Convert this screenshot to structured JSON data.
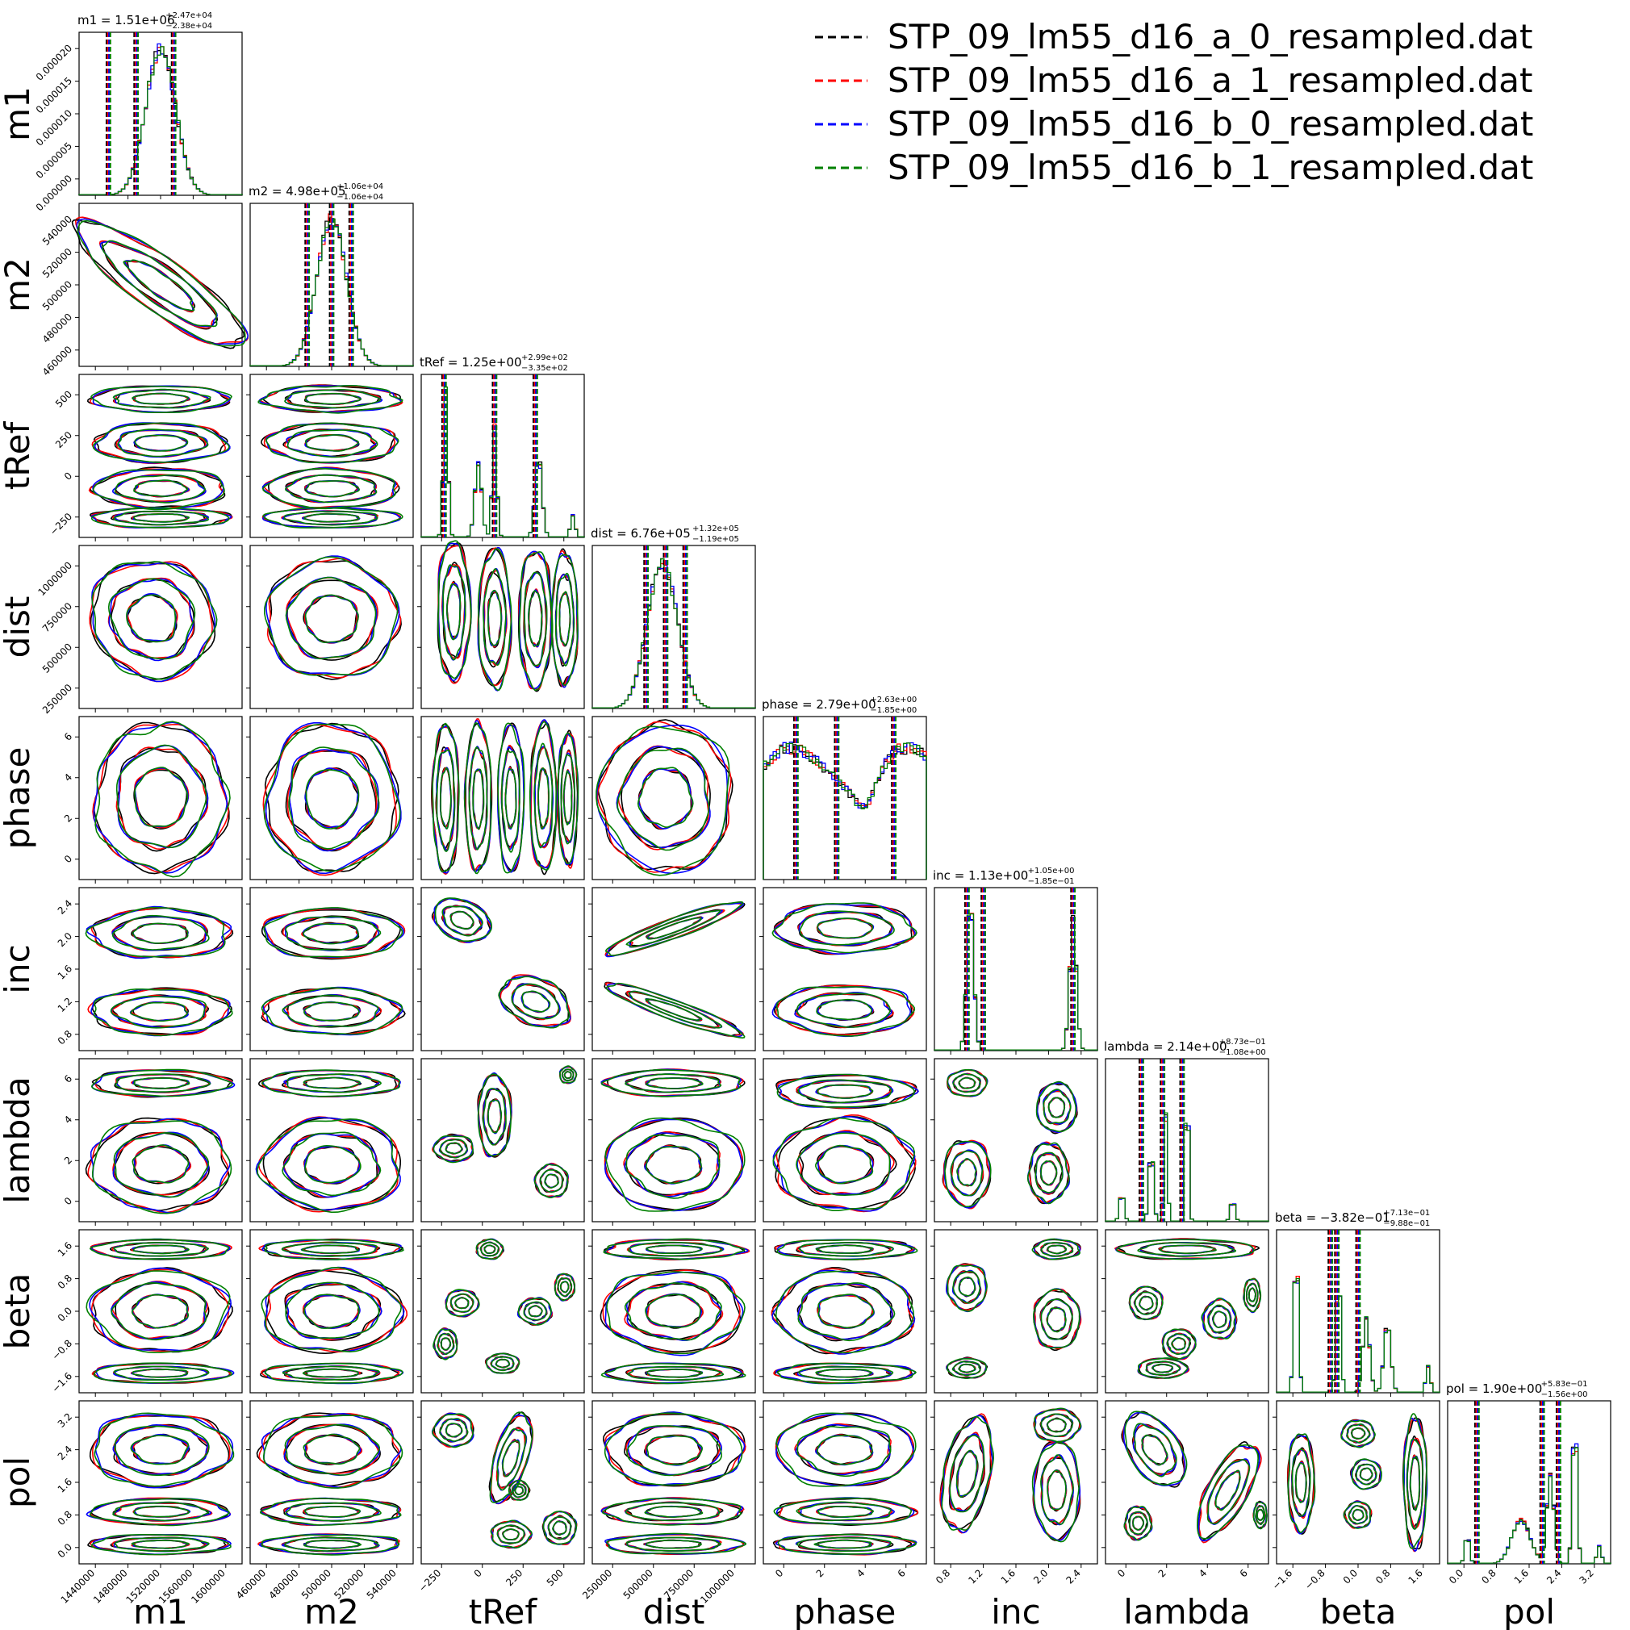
{
  "chart_data": {
    "type": "corner",
    "parameters": [
      {
        "name": "m1",
        "title": "m1 = 1.51e+06",
        "title_up": "+2.47e+04",
        "title_down": "−2.38e+04",
        "x_ticks": [
          "1440000",
          "1480000",
          "1520000",
          "1560000",
          "1600000"
        ],
        "y_ticks": [
          "0.000000",
          "0.000005",
          "0.000010",
          "0.000015",
          "0.000020"
        ]
      },
      {
        "name": "m2",
        "title": "m2 = 4.98e+05",
        "title_up": "+1.06e+04",
        "title_down": "−1.06e+04",
        "x_ticks": [
          "460000",
          "480000",
          "500000",
          "520000",
          "540000"
        ],
        "y_ticks": [
          "460000",
          "480000",
          "500000",
          "520000",
          "540000"
        ]
      },
      {
        "name": "tRef",
        "title": "tRef = 1.25e+00",
        "title_up": "+2.99e+02",
        "title_down": "−3.35e+02",
        "x_ticks": [
          "−250",
          "0",
          "250",
          "500"
        ],
        "y_ticks": [
          "−250",
          "0",
          "250",
          "500"
        ]
      },
      {
        "name": "dist",
        "title": "dist = 6.76e+05",
        "title_up": "+1.32e+05",
        "title_down": "−1.19e+05",
        "x_ticks": [
          "250000",
          "500000",
          "750000",
          "1000000"
        ],
        "y_ticks": [
          "250000",
          "500000",
          "750000",
          "1000000"
        ]
      },
      {
        "name": "phase",
        "title": "phase = 2.79e+00",
        "title_up": "+2.63e+00",
        "title_down": "−1.85e+00",
        "x_ticks": [
          "0",
          "2",
          "4",
          "6"
        ],
        "y_ticks": [
          "0",
          "2",
          "4",
          "6"
        ]
      },
      {
        "name": "inc",
        "title": "inc = 1.13e+00",
        "title_up": "+1.05e+00",
        "title_down": "−1.85e−01",
        "x_ticks": [
          "0.8",
          "1.2",
          "1.6",
          "2.0",
          "2.4"
        ],
        "y_ticks": [
          "0.8",
          "1.2",
          "1.6",
          "2.0",
          "2.4"
        ]
      },
      {
        "name": "lambda",
        "title": "lambda = 2.14e+00",
        "title_up": "+8.73e−01",
        "title_down": "−1.08e+00",
        "x_ticks": [
          "0",
          "2",
          "4",
          "6"
        ],
        "y_ticks": [
          "0",
          "2",
          "4",
          "6"
        ]
      },
      {
        "name": "beta",
        "title": "beta = −3.82e−01",
        "title_up": "+7.13e−01",
        "title_down": "−9.88e−01",
        "x_ticks": [
          "−1.6",
          "−0.8",
          "0.0",
          "0.8",
          "1.6"
        ],
        "y_ticks": [
          "−1.6",
          "−0.8",
          "0.0",
          "0.8",
          "1.6"
        ]
      },
      {
        "name": "pol",
        "title": "pol = 1.90e+00",
        "title_up": "+5.83e−01",
        "title_down": "−1.56e+00",
        "x_ticks": [
          "0.0",
          "0.8",
          "1.6",
          "2.4",
          "3.2"
        ],
        "y_ticks": [
          "0.0",
          "0.8",
          "1.6",
          "2.4",
          "3.2"
        ]
      }
    ],
    "legend": {
      "placement": "top-right",
      "entries": [
        {
          "label": "STP_09_lm55_d16_a_0_resampled.dat",
          "color": "#000000"
        },
        {
          "label": "STP_09_lm55_d16_a_1_resampled.dat",
          "color": "#ff0000"
        },
        {
          "label": "STP_09_lm55_d16_b_0_resampled.dat",
          "color": "#0000ff"
        },
        {
          "label": "STP_09_lm55_d16_b_1_resampled.dat",
          "color": "#008000"
        }
      ]
    },
    "series_colors": [
      "#000000",
      "#ff0000",
      "#0000ff",
      "#008000"
    ]
  }
}
